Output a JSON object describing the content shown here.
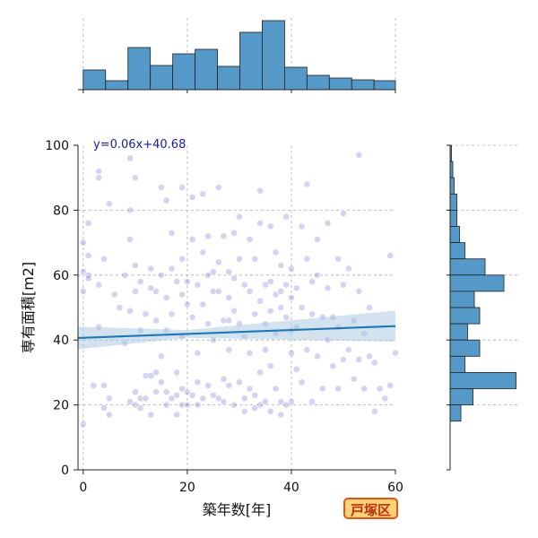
{
  "chart_data": {
    "type": "scatter",
    "regression": {
      "label": "y=0.06x+40.68",
      "slope": 0.06,
      "intercept": 40.68
    },
    "xlabel": "築年数[年]",
    "ylabel": "専有面積[m2]",
    "xlim": [
      -1,
      60
    ],
    "ylim": [
      0,
      100
    ],
    "x_ticks": [
      0,
      20,
      40,
      60
    ],
    "y_ticks": [
      0,
      20,
      40,
      60,
      80,
      100
    ],
    "grid": true,
    "colors": {
      "point": "#3b3bbf",
      "line": "#1f77b4",
      "band": "#a6c8e0",
      "hist": "#5599c8"
    },
    "top_histogram": {
      "bins": [
        [
          0,
          4.3
        ],
        [
          4.3,
          8.6
        ],
        [
          8.6,
          12.9
        ],
        [
          12.9,
          17.2
        ],
        [
          17.2,
          21.5
        ],
        [
          21.5,
          25.8
        ],
        [
          25.8,
          30.1
        ],
        [
          30.1,
          34.4
        ],
        [
          34.4,
          38.7
        ],
        [
          38.7,
          43
        ],
        [
          43,
          47.3
        ],
        [
          47.3,
          51.6
        ],
        [
          51.6,
          55.9
        ],
        [
          55.9,
          60.2
        ],
        [
          60.2,
          64.5
        ]
      ],
      "counts": [
        22,
        10,
        47,
        27,
        40,
        45,
        26,
        64,
        77,
        25,
        16,
        13,
        11,
        10,
        7
      ]
    },
    "right_histogram": {
      "bins": [
        [
          95,
          100
        ],
        [
          90,
          95
        ],
        [
          85,
          90
        ],
        [
          80,
          85
        ],
        [
          75,
          80
        ],
        [
          70,
          75
        ],
        [
          65,
          70
        ],
        [
          60,
          65
        ],
        [
          55,
          60
        ],
        [
          50,
          55
        ],
        [
          45,
          50
        ],
        [
          40,
          45
        ],
        [
          35,
          40
        ],
        [
          30,
          35
        ],
        [
          25,
          30
        ],
        [
          20,
          25
        ],
        [
          15,
          20
        ],
        [
          10,
          15
        ]
      ],
      "counts": [
        1,
        2,
        3,
        5,
        5,
        7,
        11,
        26,
        40,
        18,
        22,
        13,
        22,
        11,
        49,
        17,
        8,
        0
      ]
    },
    "points": [
      [
        0,
        14
      ],
      [
        0,
        70
      ],
      [
        0,
        55
      ],
      [
        0,
        61
      ],
      [
        1,
        76
      ],
      [
        1,
        60
      ],
      [
        1,
        66
      ],
      [
        1,
        59
      ],
      [
        2,
        26
      ],
      [
        3,
        92
      ],
      [
        3,
        90
      ],
      [
        3,
        57
      ],
      [
        3,
        44
      ],
      [
        4,
        65
      ],
      [
        4,
        26
      ],
      [
        4,
        19
      ],
      [
        5,
        82
      ],
      [
        5,
        22
      ],
      [
        5,
        17
      ],
      [
        6,
        54
      ],
      [
        7,
        50
      ],
      [
        8,
        60
      ],
      [
        8,
        39
      ],
      [
        9,
        96
      ],
      [
        9,
        80
      ],
      [
        9,
        71
      ],
      [
        9,
        49
      ],
      [
        9,
        21
      ],
      [
        10,
        90
      ],
      [
        10,
        63
      ],
      [
        10,
        55
      ],
      [
        10,
        24
      ],
      [
        10,
        20
      ],
      [
        11,
        58
      ],
      [
        11,
        43
      ],
      [
        11,
        22
      ],
      [
        11,
        19
      ],
      [
        12,
        48
      ],
      [
        12,
        29
      ],
      [
        12,
        22
      ],
      [
        13,
        62
      ],
      [
        13,
        56
      ],
      [
        13,
        29
      ],
      [
        13,
        17
      ],
      [
        14,
        55
      ],
      [
        14,
        46
      ],
      [
        14,
        30
      ],
      [
        14,
        24
      ],
      [
        15,
        87
      ],
      [
        15,
        60
      ],
      [
        15,
        35
      ],
      [
        15,
        27
      ],
      [
        16,
        43
      ],
      [
        16,
        83
      ],
      [
        16,
        53
      ],
      [
        16,
        24
      ],
      [
        16,
        20
      ],
      [
        17,
        62
      ],
      [
        17,
        73
      ],
      [
        17,
        48
      ],
      [
        17,
        22
      ],
      [
        18,
        58
      ],
      [
        18,
        30
      ],
      [
        18,
        23
      ],
      [
        18,
        17
      ],
      [
        19,
        87
      ],
      [
        19,
        65
      ],
      [
        19,
        54
      ],
      [
        19,
        41
      ],
      [
        19,
        25
      ],
      [
        19,
        20
      ],
      [
        20,
        58
      ],
      [
        20,
        51
      ],
      [
        20,
        24
      ],
      [
        20,
        20
      ],
      [
        21,
        84
      ],
      [
        21,
        71
      ],
      [
        21,
        47
      ],
      [
        21,
        23
      ],
      [
        22,
        57
      ],
      [
        22,
        36
      ],
      [
        22,
        27
      ],
      [
        22,
        20
      ],
      [
        23,
        85
      ],
      [
        23,
        67
      ],
      [
        23,
        51
      ],
      [
        23,
        22
      ],
      [
        24,
        72
      ],
      [
        24,
        60
      ],
      [
        24,
        45
      ],
      [
        24,
        26
      ],
      [
        25,
        61
      ],
      [
        25,
        55
      ],
      [
        25,
        40
      ],
      [
        25,
        23
      ],
      [
        26,
        87
      ],
      [
        26,
        64
      ],
      [
        26,
        55
      ],
      [
        26,
        22
      ],
      [
        27,
        72
      ],
      [
        27,
        46
      ],
      [
        27,
        28
      ],
      [
        27,
        21
      ],
      [
        28,
        61
      ],
      [
        28,
        53
      ],
      [
        28,
        46
      ],
      [
        28,
        37
      ],
      [
        28,
        26
      ],
      [
        29,
        73
      ],
      [
        29,
        59
      ],
      [
        29,
        49
      ],
      [
        29,
        20
      ],
      [
        30,
        78
      ],
      [
        30,
        65
      ],
      [
        30,
        45
      ],
      [
        30,
        27
      ],
      [
        31,
        57
      ],
      [
        31,
        41
      ],
      [
        31,
        22
      ],
      [
        31,
        18
      ],
      [
        32,
        71
      ],
      [
        32,
        55
      ],
      [
        32,
        36
      ],
      [
        32,
        25
      ],
      [
        33,
        65
      ],
      [
        33,
        48
      ],
      [
        33,
        23
      ],
      [
        33,
        19
      ],
      [
        34,
        86
      ],
      [
        34,
        76
      ],
      [
        34,
        52
      ],
      [
        34,
        30
      ],
      [
        34,
        20
      ],
      [
        35,
        57
      ],
      [
        35,
        45
      ],
      [
        35,
        37
      ],
      [
        35,
        21
      ],
      [
        36,
        75
      ],
      [
        36,
        58
      ],
      [
        36,
        49
      ],
      [
        36,
        32
      ],
      [
        36,
        18
      ],
      [
        37,
        67
      ],
      [
        37,
        54
      ],
      [
        37,
        42
      ],
      [
        37,
        25
      ],
      [
        38,
        63
      ],
      [
        38,
        55
      ],
      [
        38,
        50
      ],
      [
        38,
        21
      ],
      [
        38,
        17
      ],
      [
        39,
        78
      ],
      [
        39,
        57
      ],
      [
        39,
        47
      ],
      [
        39,
        20
      ],
      [
        40,
        62
      ],
      [
        40,
        53
      ],
      [
        40,
        43
      ],
      [
        40,
        36
      ],
      [
        40,
        21
      ],
      [
        41,
        56
      ],
      [
        41,
        44
      ],
      [
        41,
        31
      ],
      [
        42,
        75
      ],
      [
        42,
        50
      ],
      [
        42,
        27
      ],
      [
        43,
        88
      ],
      [
        43,
        65
      ],
      [
        43,
        37
      ],
      [
        44,
        58
      ],
      [
        44,
        48
      ],
      [
        44,
        21
      ],
      [
        45,
        71
      ],
      [
        45,
        60
      ],
      [
        45,
        35
      ],
      [
        46,
        47
      ],
      [
        46,
        25
      ],
      [
        47,
        76
      ],
      [
        47,
        56
      ],
      [
        47,
        40
      ],
      [
        48,
        47
      ],
      [
        48,
        32
      ],
      [
        49,
        65
      ],
      [
        49,
        44
      ],
      [
        49,
        25
      ],
      [
        50,
        79
      ],
      [
        50,
        57
      ],
      [
        50,
        34
      ],
      [
        51,
        62
      ],
      [
        51,
        37
      ],
      [
        52,
        46
      ],
      [
        52,
        28
      ],
      [
        53,
        97
      ],
      [
        53,
        55
      ],
      [
        53,
        34
      ],
      [
        54,
        42
      ],
      [
        54,
        25
      ],
      [
        55,
        50
      ],
      [
        55,
        35
      ],
      [
        56,
        33
      ],
      [
        56,
        18
      ],
      [
        57,
        25
      ],
      [
        58,
        22
      ],
      [
        59,
        66
      ],
      [
        59,
        26
      ],
      [
        60,
        36
      ]
    ]
  }
}
